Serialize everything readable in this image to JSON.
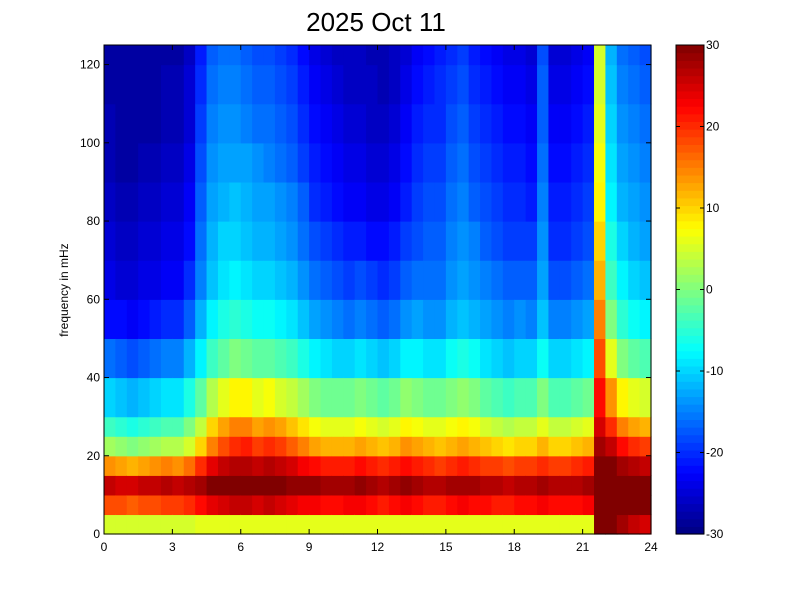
{
  "chart_data": {
    "type": "heatmap",
    "title": "2025 Oct 11",
    "xlabel": "",
    "ylabel": "frequency in mHz",
    "xlim": [
      0,
      24
    ],
    "ylim": [
      0,
      125
    ],
    "x_ticks": [
      "0",
      "3",
      "6",
      "9",
      "12",
      "15",
      "18",
      "21",
      "24"
    ],
    "y_ticks": [
      "0",
      "20",
      "40",
      "60",
      "80",
      "100",
      "120"
    ],
    "colorbar": {
      "colormap": "jet",
      "range": [
        -30,
        30
      ],
      "ticks": [
        "30",
        "20",
        "10",
        "0",
        "-10",
        "-20",
        "-30"
      ]
    },
    "time_bins_hours": [
      0,
      0.5,
      1,
      1.5,
      2,
      2.5,
      3,
      3.5,
      4,
      4.5,
      5,
      5.5,
      6,
      6.5,
      7,
      7.5,
      8,
      8.5,
      9,
      9.5,
      10,
      10.5,
      11,
      11.5,
      12,
      12.5,
      13,
      13.5,
      14,
      14.5,
      15,
      15.5,
      16,
      16.5,
      17,
      17.5,
      18,
      18.5,
      19,
      19.5,
      20,
      20.5,
      21,
      21.5,
      22,
      22.5,
      23,
      23.5
    ],
    "freq_bins_mhz": [
      0,
      5,
      10,
      15,
      20,
      25,
      30,
      40,
      50,
      60,
      70,
      80,
      90,
      100,
      110,
      120
    ],
    "values_db": [
      [
        5,
        18,
        26,
        14,
        2,
        -4,
        -10,
        -16,
        -22,
        -24,
        -25,
        -26,
        -27,
        -27,
        -28,
        -28
      ],
      [
        5,
        18,
        25,
        13,
        1,
        -5,
        -11,
        -17,
        -22,
        -25,
        -26,
        -27,
        -28,
        -28,
        -28,
        -28
      ],
      [
        5,
        17,
        25,
        12,
        0,
        -6,
        -12,
        -18,
        -23,
        -25,
        -26,
        -27,
        -28,
        -28,
        -28,
        -28
      ],
      [
        5,
        18,
        26,
        13,
        1,
        -5,
        -11,
        -17,
        -22,
        -24,
        -25,
        -26,
        -27,
        -28,
        -28,
        -28
      ],
      [
        5,
        18,
        26,
        14,
        2,
        -4,
        -10,
        -16,
        -21,
        -24,
        -25,
        -26,
        -27,
        -28,
        -28,
        -28
      ],
      [
        5,
        19,
        27,
        15,
        3,
        -3,
        -9,
        -15,
        -20,
        -23,
        -24,
        -25,
        -26,
        -27,
        -27,
        -28
      ],
      [
        5,
        19,
        26,
        14,
        3,
        -3,
        -9,
        -15,
        -20,
        -23,
        -24,
        -25,
        -26,
        -27,
        -27,
        -28
      ],
      [
        5,
        20,
        27,
        16,
        5,
        0,
        -6,
        -12,
        -17,
        -20,
        -22,
        -23,
        -24,
        -25,
        -25,
        -26
      ],
      [
        6,
        22,
        28,
        20,
        10,
        4,
        -2,
        -8,
        -12,
        -15,
        -16,
        -17,
        -18,
        -19,
        -20,
        -21
      ],
      [
        6,
        24,
        30,
        24,
        15,
        10,
        3,
        -4,
        -8,
        -11,
        -12,
        -13,
        -14,
        -15,
        -16,
        -17
      ],
      [
        6,
        25,
        30,
        26,
        18,
        13,
        6,
        -2,
        -6,
        -9,
        -10,
        -12,
        -13,
        -14,
        -15,
        -16
      ],
      [
        6,
        26,
        30,
        27,
        20,
        15,
        8,
        0,
        -5,
        -8,
        -10,
        -11,
        -13,
        -14,
        -15,
        -16
      ],
      [
        6,
        26,
        30,
        27,
        21,
        15,
        8,
        -1,
        -6,
        -9,
        -11,
        -12,
        -13,
        -15,
        -16,
        -17
      ],
      [
        6,
        25,
        30,
        26,
        19,
        13,
        6,
        -2,
        -7,
        -10,
        -12,
        -13,
        -14,
        -16,
        -17,
        -18
      ],
      [
        6,
        26,
        30,
        27,
        20,
        14,
        7,
        -2,
        -7,
        -10,
        -12,
        -13,
        -15,
        -16,
        -17,
        -18
      ],
      [
        6,
        25,
        30,
        26,
        19,
        13,
        5,
        -3,
        -8,
        -11,
        -13,
        -14,
        -16,
        -17,
        -18,
        -19
      ],
      [
        6,
        24,
        29,
        25,
        17,
        11,
        4,
        -4,
        -9,
        -12,
        -14,
        -15,
        -17,
        -18,
        -19,
        -20
      ],
      [
        6,
        23,
        29,
        23,
        15,
        9,
        2,
        -6,
        -11,
        -14,
        -16,
        -17,
        -19,
        -20,
        -21,
        -22
      ],
      [
        6,
        23,
        29,
        22,
        13,
        7,
        0,
        -8,
        -13,
        -16,
        -18,
        -20,
        -21,
        -22,
        -23,
        -24
      ],
      [
        6,
        22,
        28,
        21,
        12,
        6,
        -1,
        -9,
        -14,
        -17,
        -19,
        -21,
        -22,
        -23,
        -24,
        -25
      ],
      [
        6,
        22,
        28,
        21,
        12,
        6,
        -1,
        -10,
        -15,
        -18,
        -20,
        -22,
        -23,
        -24,
        -25,
        -26
      ],
      [
        6,
        23,
        28,
        21,
        12,
        6,
        -1,
        -10,
        -16,
        -19,
        -21,
        -23,
        -24,
        -25,
        -26,
        -26
      ],
      [
        6,
        23,
        29,
        22,
        13,
        7,
        0,
        -9,
        -15,
        -18,
        -21,
        -23,
        -24,
        -25,
        -26,
        -26
      ],
      [
        6,
        22,
        28,
        21,
        12,
        6,
        -1,
        -10,
        -16,
        -19,
        -22,
        -24,
        -25,
        -26,
        -26,
        -27
      ],
      [
        6,
        21,
        27,
        20,
        11,
        5,
        -2,
        -11,
        -17,
        -20,
        -22,
        -24,
        -25,
        -26,
        -27,
        -27
      ],
      [
        6,
        22,
        28,
        21,
        12,
        6,
        -1,
        -10,
        -16,
        -19,
        -21,
        -23,
        -24,
        -25,
        -26,
        -26
      ],
      [
        6,
        23,
        29,
        22,
        14,
        8,
        1,
        -8,
        -14,
        -17,
        -19,
        -21,
        -22,
        -23,
        -24,
        -25
      ],
      [
        6,
        22,
        28,
        21,
        13,
        7,
        0,
        -8,
        -13,
        -16,
        -18,
        -19,
        -20,
        -21,
        -22,
        -23
      ],
      [
        6,
        21,
        27,
        20,
        12,
        6,
        -1,
        -9,
        -14,
        -16,
        -17,
        -18,
        -19,
        -20,
        -21,
        -22
      ],
      [
        6,
        21,
        27,
        19,
        11,
        6,
        -1,
        -9,
        -14,
        -16,
        -17,
        -18,
        -19,
        -20,
        -20,
        -21
      ],
      [
        6,
        22,
        28,
        20,
        12,
        7,
        0,
        -7,
        -12,
        -14,
        -15,
        -16,
        -17,
        -18,
        -19,
        -20
      ],
      [
        6,
        23,
        28,
        21,
        13,
        8,
        1,
        -6,
        -11,
        -13,
        -14,
        -15,
        -16,
        -17,
        -18,
        -19
      ],
      [
        6,
        22,
        28,
        20,
        12,
        7,
        0,
        -7,
        -12,
        -14,
        -15,
        -17,
        -18,
        -19,
        -20,
        -21
      ],
      [
        6,
        22,
        27,
        19,
        11,
        5,
        -2,
        -9,
        -13,
        -15,
        -17,
        -18,
        -19,
        -20,
        -21,
        -22
      ],
      [
        6,
        21,
        27,
        19,
        10,
        4,
        -3,
        -10,
        -14,
        -16,
        -18,
        -19,
        -20,
        -21,
        -22,
        -23
      ],
      [
        6,
        21,
        26,
        18,
        9,
        3,
        -4,
        -11,
        -15,
        -17,
        -19,
        -20,
        -21,
        -22,
        -23,
        -24
      ],
      [
        6,
        22,
        27,
        19,
        10,
        4,
        -3,
        -10,
        -14,
        -17,
        -19,
        -20,
        -21,
        -22,
        -23,
        -24
      ],
      [
        6,
        22,
        27,
        19,
        10,
        4,
        -3,
        -10,
        -15,
        -17,
        -19,
        -21,
        -22,
        -23,
        -24,
        -25
      ],
      [
        6,
        23,
        28,
        20,
        12,
        6,
        0,
        -7,
        -11,
        -13,
        -14,
        -15,
        -16,
        -17,
        -17,
        -18
      ],
      [
        6,
        22,
        27,
        19,
        10,
        4,
        -3,
        -10,
        -15,
        -18,
        -20,
        -21,
        -22,
        -23,
        -24,
        -25
      ],
      [
        6,
        22,
        27,
        19,
        10,
        4,
        -3,
        -10,
        -15,
        -18,
        -20,
        -21,
        -22,
        -23,
        -24,
        -25
      ],
      [
        6,
        22,
        27,
        20,
        11,
        5,
        -2,
        -9,
        -14,
        -17,
        -19,
        -20,
        -21,
        -22,
        -23,
        -24
      ],
      [
        6,
        23,
        28,
        21,
        12,
        6,
        -1,
        -8,
        -13,
        -16,
        -18,
        -19,
        -20,
        -21,
        -22,
        -23
      ],
      [
        30,
        30,
        30,
        30,
        28,
        25,
        22,
        18,
        15,
        12,
        10,
        8,
        7,
        6,
        5,
        5
      ],
      [
        30,
        30,
        30,
        30,
        26,
        20,
        14,
        6,
        0,
        -4,
        -6,
        -8,
        -9,
        -10,
        -11,
        -12
      ],
      [
        28,
        30,
        30,
        28,
        22,
        15,
        8,
        0,
        -5,
        -8,
        -10,
        -12,
        -13,
        -14,
        -15,
        -16
      ],
      [
        26,
        30,
        30,
        27,
        20,
        13,
        6,
        -2,
        -7,
        -10,
        -12,
        -13,
        -14,
        -15,
        -16,
        -17
      ],
      [
        25,
        30,
        30,
        26,
        19,
        12,
        5,
        -3,
        -8,
        -11,
        -13,
        -14,
        -15,
        -16,
        -17,
        -18
      ]
    ]
  }
}
